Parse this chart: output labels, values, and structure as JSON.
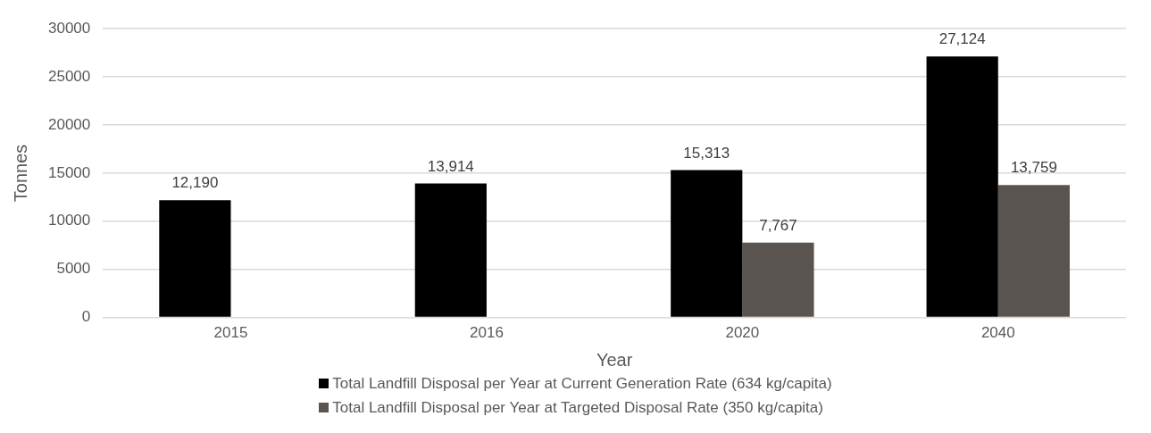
{
  "chart_data": {
    "type": "bar",
    "categories": [
      "2015",
      "2016",
      "2020",
      "2040"
    ],
    "xlabel": "Year",
    "ylabel": "Tonnes",
    "series": [
      {
        "name": "Total Landfill Disposal per Year at Current Generation Rate (634 kg/capita)",
        "color": "#000000",
        "values": [
          12190,
          13914,
          15313,
          27124
        ],
        "value_labels": [
          "12,190",
          "13,914",
          "15,313",
          "27,124"
        ]
      },
      {
        "name": "Total Landfill Disposal per Year at Targeted Disposal Rate (350 kg/capita)",
        "color": "#5a5451",
        "values": [
          null,
          null,
          7767,
          13759
        ],
        "value_labels": [
          null,
          null,
          "7,767",
          "13,759"
        ]
      }
    ],
    "ylim": [
      0,
      30000
    ],
    "yticks": [
      0,
      5000,
      10000,
      15000,
      20000,
      25000,
      30000
    ],
    "grid": "y",
    "legend": "bottom"
  }
}
